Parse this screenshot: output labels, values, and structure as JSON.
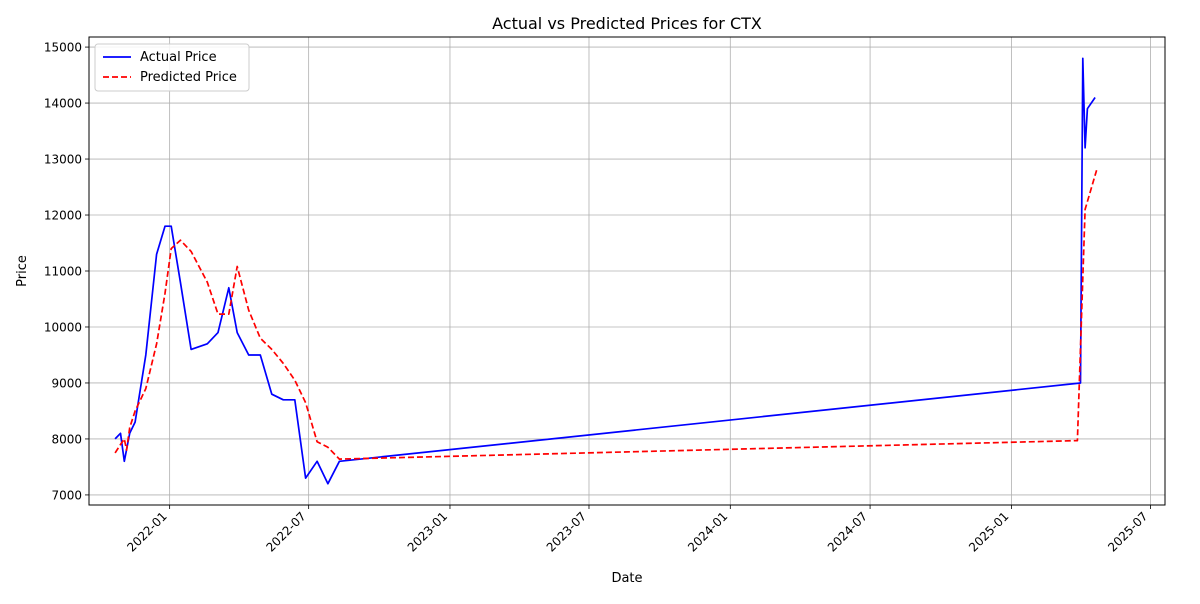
{
  "chart_data": {
    "type": "line",
    "title": "Actual vs Predicted Prices for CTX",
    "xlabel": "Date",
    "ylabel": "Price",
    "grid": true,
    "legend": "top-left",
    "x_ticks": [
      "2022-01",
      "2022-07",
      "2023-01",
      "2023-07",
      "2024-01",
      "2024-07",
      "2025-01",
      "2025-07"
    ],
    "y_ticks": [
      7000,
      8000,
      9000,
      10000,
      11000,
      12000,
      13000,
      14000,
      15000
    ],
    "series": [
      {
        "name": "Actual Price",
        "color": "#0000ff",
        "style": "solid",
        "points": [
          [
            "2021-10-22",
            8000
          ],
          [
            "2021-10-29",
            8100
          ],
          [
            "2021-11-03",
            7600
          ],
          [
            "2021-11-10",
            8100
          ],
          [
            "2021-11-17",
            8300
          ],
          [
            "2021-12-01",
            9500
          ],
          [
            "2021-12-15",
            11300
          ],
          [
            "2021-12-26",
            11800
          ],
          [
            "2022-01-03",
            11800
          ],
          [
            "2022-01-15",
            10800
          ],
          [
            "2022-01-29",
            9600
          ],
          [
            "2022-02-19",
            9700
          ],
          [
            "2022-03-05",
            9900
          ],
          [
            "2022-03-19",
            10700
          ],
          [
            "2022-03-30",
            9900
          ],
          [
            "2022-04-14",
            9500
          ],
          [
            "2022-04-29",
            9500
          ],
          [
            "2022-05-14",
            8800
          ],
          [
            "2022-05-29",
            8700
          ],
          [
            "2022-06-13",
            8700
          ],
          [
            "2022-06-27",
            7300
          ],
          [
            "2022-07-12",
            7600
          ],
          [
            "2022-07-26",
            7200
          ],
          [
            "2022-08-10",
            7600
          ],
          [
            "2025-04-01",
            9000
          ],
          [
            "2025-04-04",
            14800
          ],
          [
            "2025-04-07",
            13200
          ],
          [
            "2025-04-10",
            13900
          ],
          [
            "2025-04-20",
            14100
          ]
        ]
      },
      {
        "name": "Predicted Price",
        "color": "#ff0000",
        "style": "dashed",
        "points": [
          [
            "2021-10-22",
            7750
          ],
          [
            "2021-10-29",
            7900
          ],
          [
            "2021-11-03",
            8000
          ],
          [
            "2021-11-06",
            7800
          ],
          [
            "2021-11-10",
            8200
          ],
          [
            "2021-11-17",
            8500
          ],
          [
            "2021-12-01",
            8900
          ],
          [
            "2021-12-15",
            9700
          ],
          [
            "2021-12-26",
            10600
          ],
          [
            "2022-01-03",
            11400
          ],
          [
            "2022-01-15",
            11550
          ],
          [
            "2022-01-29",
            11350
          ],
          [
            "2022-02-19",
            10800
          ],
          [
            "2022-03-05",
            10230
          ],
          [
            "2022-03-19",
            10230
          ],
          [
            "2022-03-30",
            11080
          ],
          [
            "2022-04-14",
            10300
          ],
          [
            "2022-04-29",
            9800
          ],
          [
            "2022-05-14",
            9600
          ],
          [
            "2022-05-29",
            9350
          ],
          [
            "2022-06-13",
            9050
          ],
          [
            "2022-06-27",
            8650
          ],
          [
            "2022-07-12",
            7950
          ],
          [
            "2022-07-26",
            7850
          ],
          [
            "2022-08-10",
            7640
          ],
          [
            "2025-03-28",
            7970
          ],
          [
            "2025-04-07",
            12100
          ],
          [
            "2025-04-22",
            12800
          ]
        ]
      }
    ]
  }
}
